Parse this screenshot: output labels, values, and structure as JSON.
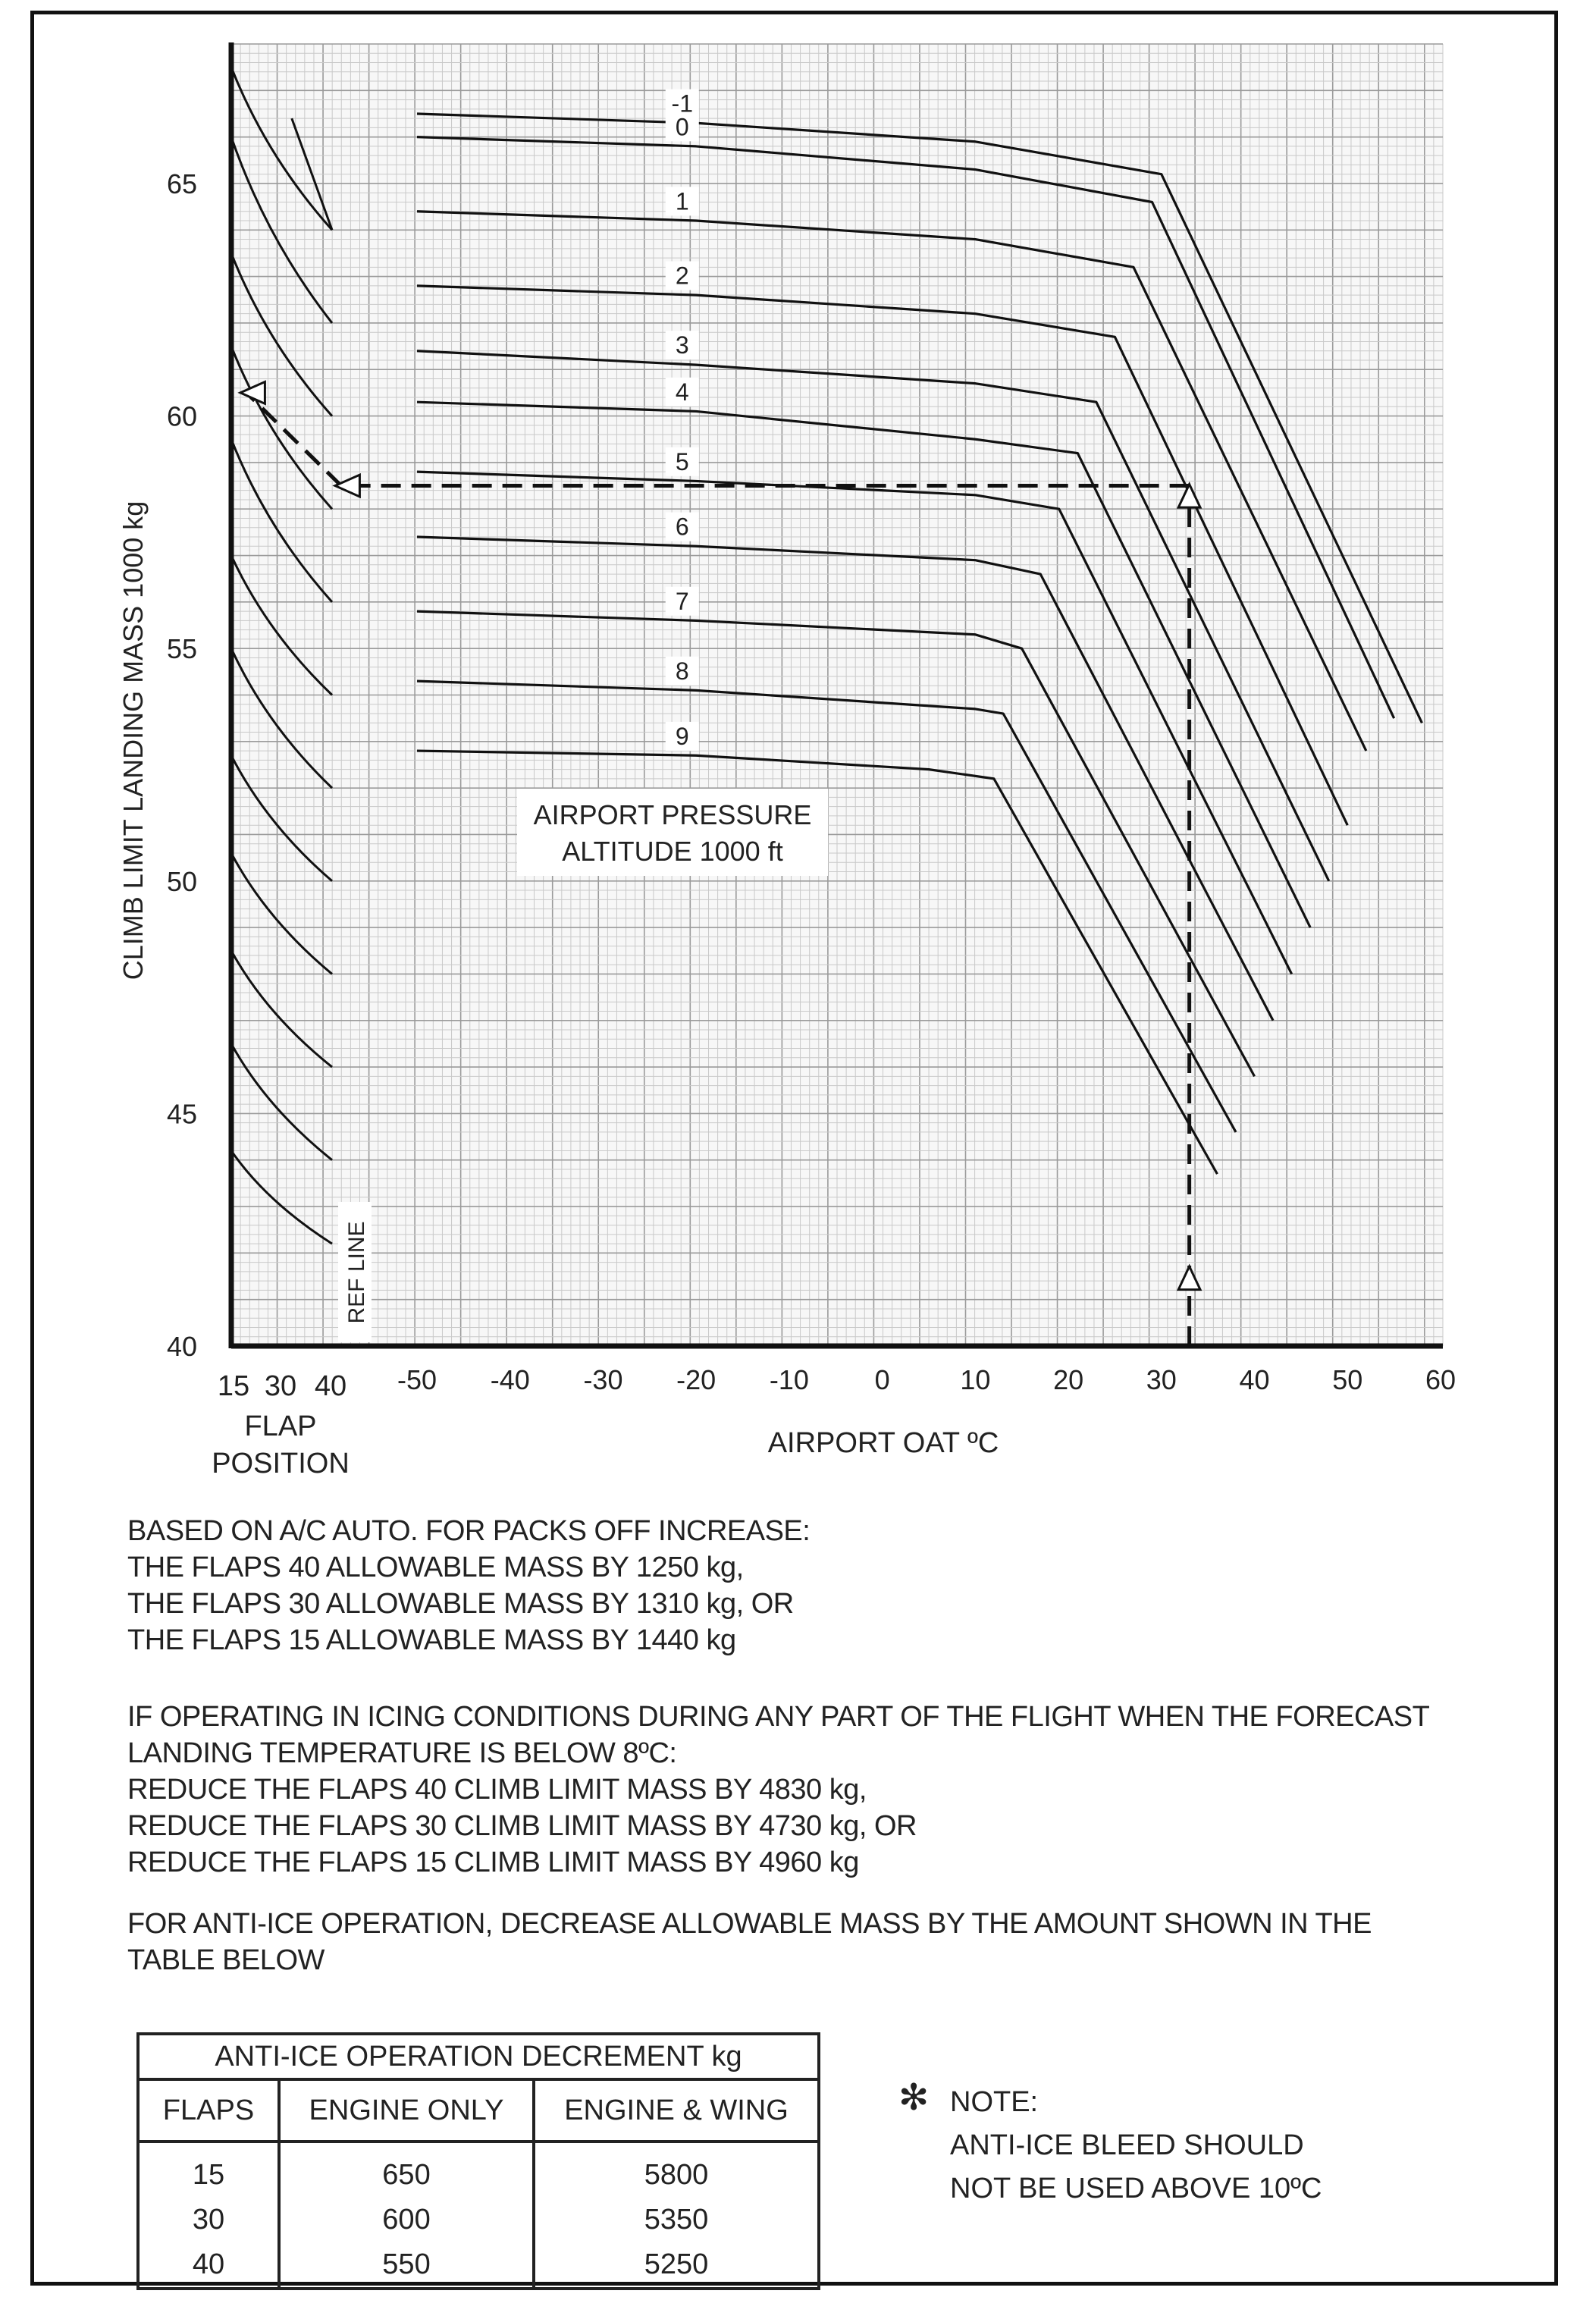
{
  "chart_data": {
    "type": "line",
    "ylabel": "CLIMB LIMIT LANDING MASS 1000 kg",
    "ylim": [
      40,
      68
    ],
    "yticks": [
      40,
      45,
      50,
      55,
      60,
      65
    ],
    "xlabel": "AIRPORT OAT ºC",
    "xlim": [
      -50,
      60
    ],
    "xticks": [
      -50,
      -40,
      -30,
      -20,
      -10,
      0,
      10,
      20,
      30,
      40,
      50,
      60
    ],
    "flap_label": "FLAP\nPOSITION",
    "flap_ticks": [
      "15",
      "30",
      "40"
    ],
    "ref_line_label": "REF LINE",
    "grid": true,
    "legend_title": "AIRPORT PRESSURE\nALTITUDE   1000 ft",
    "series": [
      {
        "name": "-1",
        "points": [
          [
            -50,
            66.5
          ],
          [
            -20,
            66.3
          ],
          [
            10,
            65.9
          ],
          [
            30,
            65.2
          ],
          [
            58,
            53.4
          ]
        ]
      },
      {
        "name": "0",
        "points": [
          [
            -50,
            66.0
          ],
          [
            -20,
            65.8
          ],
          [
            10,
            65.3
          ],
          [
            29,
            64.6
          ],
          [
            55,
            53.5
          ]
        ]
      },
      {
        "name": "1",
        "points": [
          [
            -50,
            64.4
          ],
          [
            -20,
            64.2
          ],
          [
            10,
            63.8
          ],
          [
            27,
            63.2
          ],
          [
            52,
            52.8
          ]
        ]
      },
      {
        "name": "2",
        "points": [
          [
            -50,
            62.8
          ],
          [
            -20,
            62.6
          ],
          [
            10,
            62.2
          ],
          [
            25,
            61.7
          ],
          [
            50,
            51.2
          ]
        ]
      },
      {
        "name": "3",
        "points": [
          [
            -50,
            61.4
          ],
          [
            -20,
            61.1
          ],
          [
            10,
            60.7
          ],
          [
            23,
            60.3
          ],
          [
            48,
            50.0
          ]
        ]
      },
      {
        "name": "4",
        "points": [
          [
            -50,
            60.3
          ],
          [
            -20,
            60.1
          ],
          [
            10,
            59.5
          ],
          [
            21,
            59.2
          ],
          [
            46,
            49.0
          ]
        ]
      },
      {
        "name": "5",
        "points": [
          [
            -50,
            58.8
          ],
          [
            -20,
            58.6
          ],
          [
            10,
            58.3
          ],
          [
            19,
            58.0
          ],
          [
            44,
            48.0
          ]
        ]
      },
      {
        "name": "6",
        "points": [
          [
            -50,
            57.4
          ],
          [
            -20,
            57.2
          ],
          [
            10,
            56.9
          ],
          [
            17,
            56.6
          ],
          [
            42,
            47.0
          ]
        ]
      },
      {
        "name": "7",
        "points": [
          [
            -50,
            55.8
          ],
          [
            -20,
            55.6
          ],
          [
            10,
            55.3
          ],
          [
            15,
            55.0
          ],
          [
            40,
            45.8
          ]
        ]
      },
      {
        "name": "8",
        "points": [
          [
            -50,
            54.3
          ],
          [
            -20,
            54.1
          ],
          [
            10,
            53.7
          ],
          [
            13,
            53.6
          ],
          [
            38,
            44.6
          ]
        ]
      },
      {
        "name": "9",
        "points": [
          [
            -50,
            52.8
          ],
          [
            -20,
            52.7
          ],
          [
            5,
            52.4
          ],
          [
            12,
            52.2
          ],
          [
            36,
            43.7
          ]
        ]
      }
    ],
    "flap_curves": [
      {
        "x1": 15,
        "x2": 40,
        "top": 67.5,
        "bottom": 64.0
      },
      {
        "x1": 15,
        "x2": 40,
        "top": 66.0,
        "bottom": 62.0
      },
      {
        "x1": 15,
        "x2": 40,
        "top": 63.5,
        "bottom": 60.0
      },
      {
        "x1": 15,
        "x2": 40,
        "top": 61.5,
        "bottom": 58.0
      },
      {
        "x1": 15,
        "x2": 40,
        "top": 59.5,
        "bottom": 56.0
      },
      {
        "x1": 15,
        "x2": 40,
        "top": 57.0,
        "bottom": 54.0
      },
      {
        "x1": 15,
        "x2": 40,
        "top": 55.0,
        "bottom": 52.0
      },
      {
        "x1": 15,
        "x2": 40,
        "top": 52.7,
        "bottom": 50.0
      },
      {
        "x1": 15,
        "x2": 40,
        "top": 50.6,
        "bottom": 48.0
      },
      {
        "x1": 15,
        "x2": 40,
        "top": 48.5,
        "bottom": 46.0
      },
      {
        "x1": 15,
        "x2": 40,
        "top": 46.5,
        "bottom": 44.0
      },
      {
        "x1": 15,
        "x2": 40,
        "top": 44.2,
        "bottom": 42.2
      }
    ],
    "example_path": {
      "oat": 33,
      "mass_at_ref": 58.5,
      "result_mass": 60.5,
      "flap": 15
    }
  },
  "notes": {
    "packs": [
      "BASED ON A/C AUTO.      FOR PACKS OFF INCREASE:",
      "THE FLAPS 40 ALLOWABLE MASS BY 1250 kg,",
      "THE FLAPS 30 ALLOWABLE MASS BY 1310 kg,    OR",
      "THE FLAPS 15 ALLOWABLE MASS BY 1440 kg"
    ],
    "icing": [
      "IF OPERATING IN ICING CONDITIONS DURING ANY PART OF THE FLIGHT WHEN THE FORECAST",
      "LANDING TEMPERATURE IS BELOW 8ºC:",
      "REDUCE THE FLAPS 40 CLIMB LIMIT MASS BY 4830 kg,",
      "REDUCE THE FLAPS 30 CLIMB LIMIT MASS BY 4730 kg,  OR",
      "REDUCE THE FLAPS 15 CLIMB LIMIT MASS BY 4960 kg"
    ],
    "anti_ice": [
      "FOR ANTI-ICE OPERATION, DECREASE ALLOWABLE MASS BY THE AMOUNT SHOWN IN THE",
      "TABLE BELOW"
    ]
  },
  "table": {
    "title": "ANTI-ICE OPERATION DECREMENT  kg",
    "headers": [
      "FLAPS",
      "ENGINE ONLY",
      "ENGINE & WING"
    ],
    "rows": [
      [
        "15",
        "650",
        "5800"
      ],
      [
        "30",
        "600",
        "5350"
      ],
      [
        "40",
        "550",
        "5250"
      ]
    ]
  },
  "star_note": {
    "star": "✻",
    "lines": [
      "NOTE:",
      "ANTI-ICE BLEED SHOULD",
      "NOT BE USED ABOVE 10ºC"
    ]
  }
}
